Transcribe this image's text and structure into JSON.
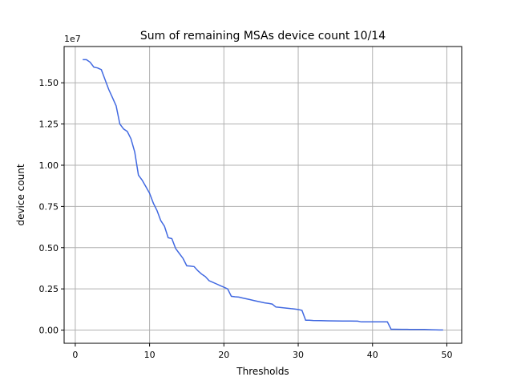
{
  "chart_data": {
    "type": "line",
    "title": "Sum of remaining MSAs device count 10/14",
    "xlabel": "Thresholds",
    "ylabel": "device count",
    "y_offset_label": "1e7",
    "xlim": [
      -1.5,
      52
    ],
    "ylim": [
      -800000,
      17200000
    ],
    "x_ticks": [
      0,
      10,
      20,
      30,
      40,
      50
    ],
    "x_tick_labels": [
      "0",
      "10",
      "20",
      "30",
      "40",
      "50"
    ],
    "y_ticks": [
      0,
      2500000,
      5000000,
      7500000,
      10000000,
      12500000,
      15000000
    ],
    "y_tick_labels": [
      "0.00",
      "0.25",
      "0.50",
      "0.75",
      "1.00",
      "1.25",
      "1.50"
    ],
    "grid": true,
    "line_color": "#4169e1",
    "series": [
      {
        "x": [
          1.0,
          1.5,
          2.0,
          2.5,
          3.0,
          3.5,
          4.0,
          4.5,
          5.0,
          5.5,
          6.0,
          6.5,
          7.0,
          7.5,
          8.0,
          8.5,
          9.0,
          9.5,
          10.0,
          10.5,
          11.0,
          11.5,
          12.0,
          12.5,
          13.0,
          13.5,
          14.0,
          14.5,
          15.0,
          15.5,
          16.0,
          16.5,
          17.0,
          17.5,
          18.0,
          18.5,
          19.0,
          19.5,
          20.0,
          20.5,
          21.0,
          21.5,
          22.0,
          22.5,
          23.0,
          23.5,
          24.0,
          24.5,
          25.0,
          25.5,
          26.0,
          26.5,
          27.0,
          27.5,
          28.0,
          28.5,
          29.0,
          29.5,
          30.0,
          30.5,
          31.0,
          31.5,
          32.0,
          33.0,
          34.0,
          35.0,
          36.0,
          37.0,
          38.0,
          38.5,
          39.0,
          40.0,
          41.0,
          42.0,
          42.5,
          43.0,
          44.0,
          45.0,
          46.0,
          47.0,
          48.0,
          49.0,
          49.5
        ],
        "y": [
          16400000,
          16400000,
          16250000,
          15950000,
          15900000,
          15800000,
          15200000,
          14600000,
          14100000,
          13600000,
          12500000,
          12200000,
          12050000,
          11600000,
          10800000,
          9400000,
          9100000,
          8700000,
          8300000,
          7700000,
          7250000,
          6650000,
          6300000,
          5600000,
          5550000,
          4950000,
          4650000,
          4350000,
          3900000,
          3880000,
          3850000,
          3600000,
          3400000,
          3250000,
          3000000,
          2900000,
          2800000,
          2700000,
          2600000,
          2500000,
          2050000,
          2020000,
          2000000,
          1950000,
          1900000,
          1850000,
          1800000,
          1750000,
          1700000,
          1650000,
          1620000,
          1580000,
          1400000,
          1380000,
          1350000,
          1330000,
          1300000,
          1280000,
          1250000,
          1200000,
          600000,
          600000,
          580000,
          570000,
          560000,
          555000,
          550000,
          550000,
          545000,
          500000,
          500000,
          500000,
          500000,
          500000,
          50000,
          50000,
          45000,
          40000,
          40000,
          35000,
          20000,
          10000,
          10000
        ]
      }
    ]
  }
}
